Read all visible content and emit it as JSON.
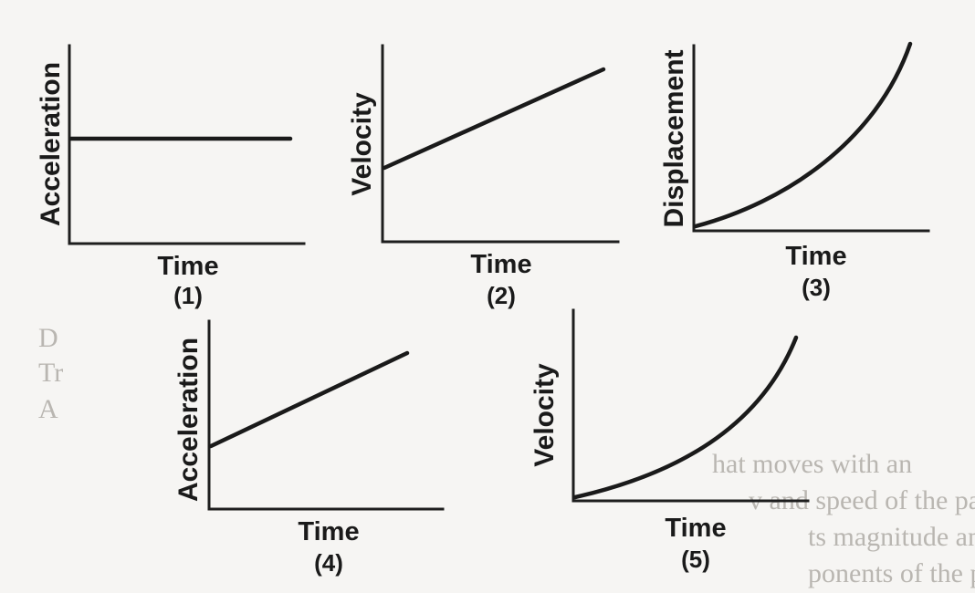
{
  "background_text": [
    "D",
    "Tr",
    "A",
    "hat moves with an",
    "v and speed of the parti",
    "ts magnitude and di",
    "ponents of the p"
  ],
  "graphs": [
    {
      "number": "(1)",
      "x_label": "Time",
      "y_label": "Acceleration",
      "shape": "constant"
    },
    {
      "number": "(2)",
      "x_label": "Time",
      "y_label": "Velocity",
      "shape": "linear-increasing"
    },
    {
      "number": "(3)",
      "x_label": "Time",
      "y_label": "Displacement",
      "shape": "exponential-increasing"
    },
    {
      "number": "(4)",
      "x_label": "Time",
      "y_label": "Acceleration",
      "shape": "linear-increasing"
    },
    {
      "number": "(5)",
      "x_label": "Time",
      "y_label": "Velocity",
      "shape": "exponential-increasing"
    }
  ]
}
